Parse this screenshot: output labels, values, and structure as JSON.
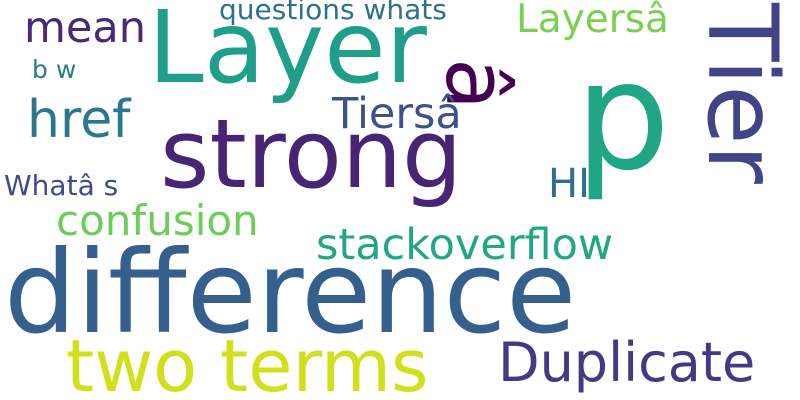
{
  "background": "#ffffff",
  "words": [
    {
      "text": "difference",
      "color": "#355f8d"
    },
    {
      "text": "p",
      "color": "#21a685"
    },
    {
      "text": "strong",
      "color": "#482475"
    },
    {
      "text": "Layer",
      "color": "#1f9e89"
    },
    {
      "text": "Tier",
      "color": "#414487"
    },
    {
      "text": "â",
      "color": "#440154"
    },
    {
      "text": "two terms",
      "color": "#d0e11c"
    },
    {
      "text": "Duplicate",
      "color": "#443983"
    },
    {
      "text": "stackoverflow",
      "color": "#22a785"
    },
    {
      "text": "confusion",
      "color": "#6ccd5a"
    },
    {
      "text": "Layersâ",
      "color": "#7ad151"
    },
    {
      "text": "mean",
      "color": "#482878"
    },
    {
      "text": "href",
      "color": "#2a788e"
    },
    {
      "text": "Tiersâ",
      "color": "#3b528b"
    },
    {
      "text": "questions whats",
      "color": "#2c728e"
    },
    {
      "text": "HI",
      "color": "#2e6e8e"
    },
    {
      "text": "Whatâ s",
      "color": "#3e4a89"
    },
    {
      "text": "b w",
      "color": "#287c8e"
    }
  ]
}
